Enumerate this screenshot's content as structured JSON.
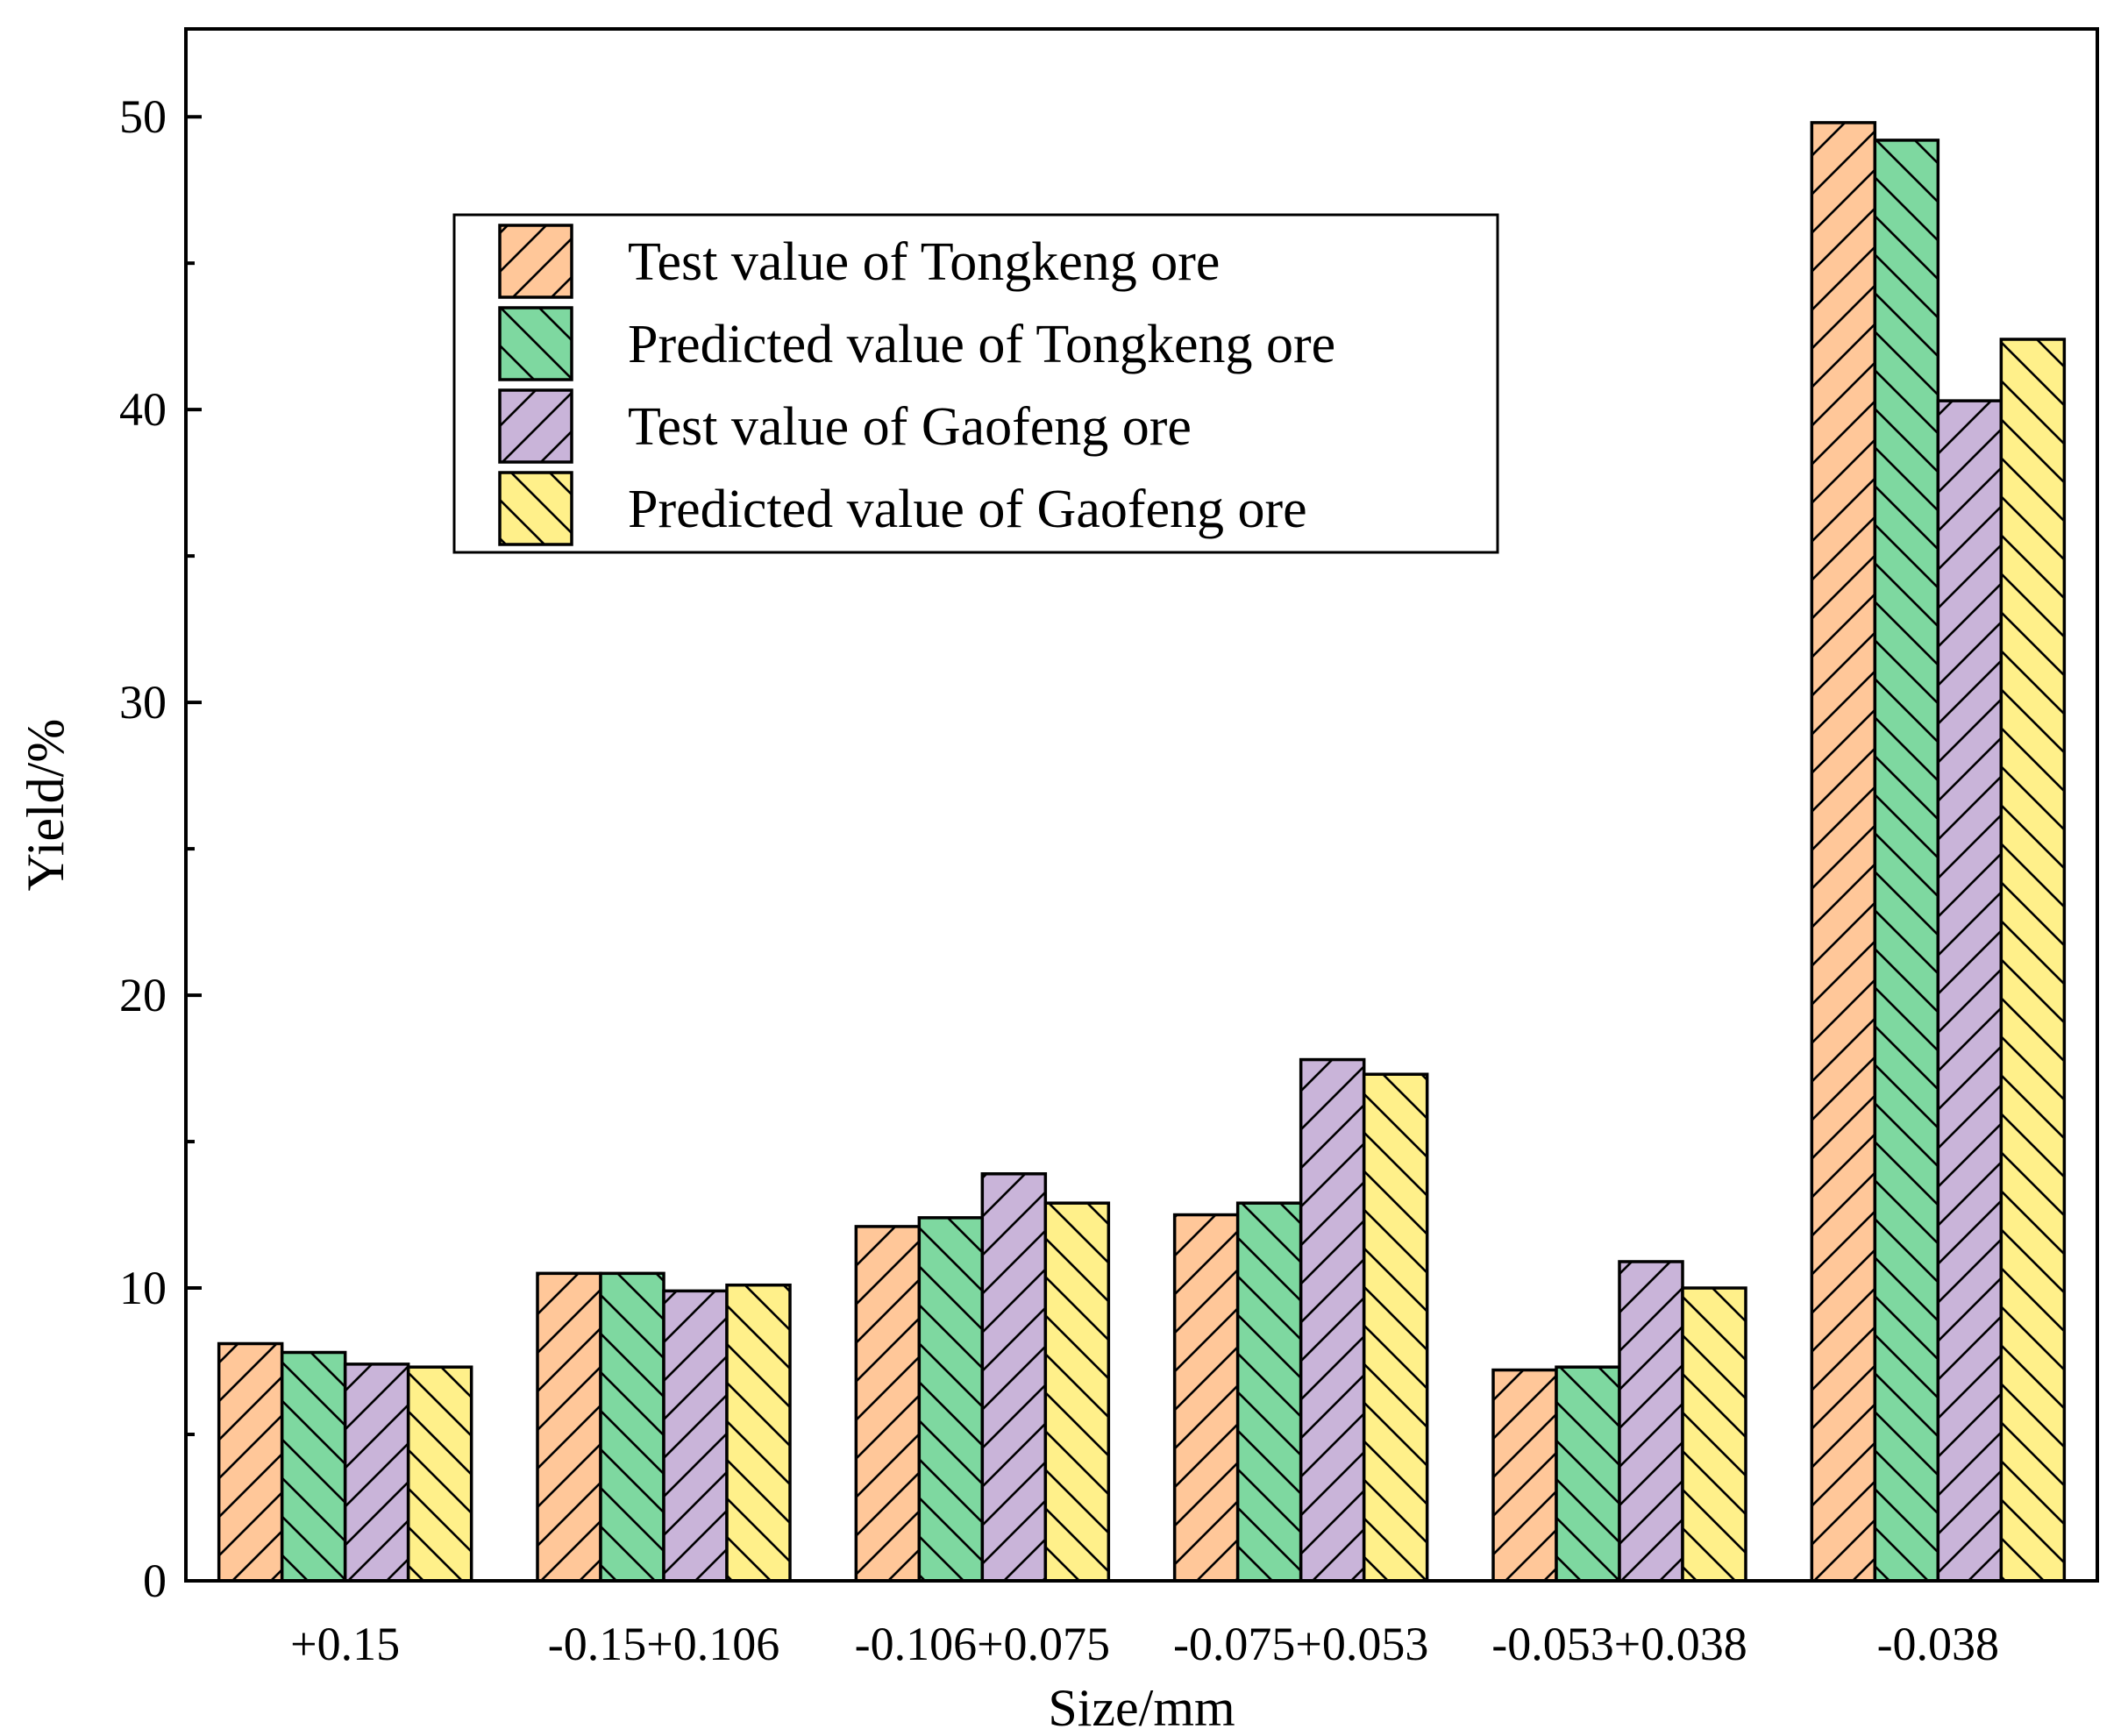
{
  "chart_data": {
    "type": "bar",
    "title": "",
    "xlabel": "Size/mm",
    "ylabel": "Yield/%",
    "ylim": [
      0,
      53
    ],
    "yticks": [
      0,
      10,
      20,
      30,
      40,
      50
    ],
    "categories": [
      "+0.15",
      "-0.15+0.106",
      "-0.106+0.075",
      "-0.075+0.053",
      "-0.053+0.038",
      "-0.038"
    ],
    "series": [
      {
        "name": "Test value of Tongkeng ore",
        "color": "#FFC799",
        "hatch": "forward",
        "values": [
          8.1,
          10.5,
          12.1,
          12.5,
          7.2,
          49.8
        ]
      },
      {
        "name": "Predicted value of Tongkeng ore",
        "color": "#7ED8A0",
        "hatch": "back",
        "values": [
          7.8,
          10.5,
          12.4,
          12.9,
          7.3,
          49.2
        ]
      },
      {
        "name": "Test value of Gaofeng ore",
        "color": "#C9B4D9",
        "hatch": "forward",
        "values": [
          7.4,
          9.9,
          13.9,
          17.8,
          10.9,
          40.3
        ]
      },
      {
        "name": "Predicted value of Gaofeng ore",
        "color": "#FFF08A",
        "hatch": "back",
        "values": [
          7.3,
          10.1,
          12.9,
          17.3,
          10.0,
          42.4
        ]
      }
    ],
    "legend_position": "upper-left"
  }
}
